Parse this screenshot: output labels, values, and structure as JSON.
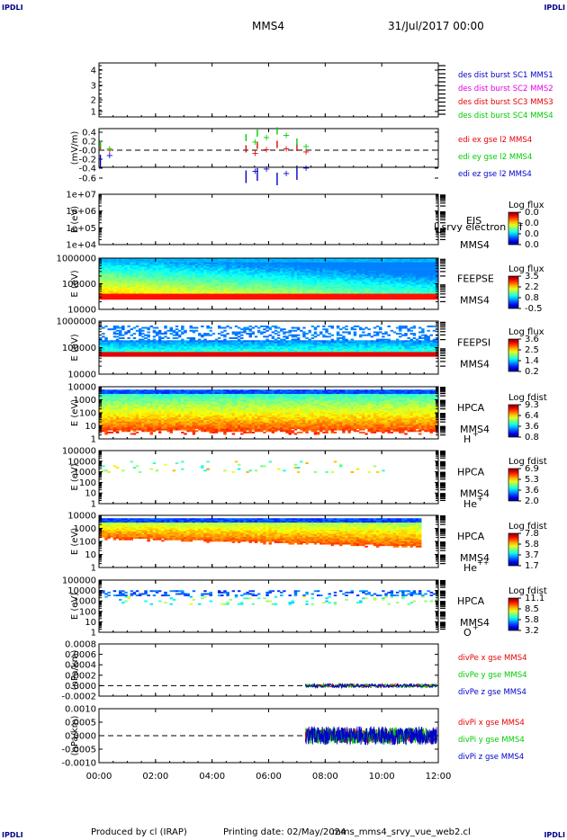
{
  "header": {
    "corner_left_top": "IPDLI",
    "corner_right_top": "IPDLI",
    "corner_left_bottom": "IPDLI",
    "corner_right_bottom": "IPDLI",
    "title": "MMS4",
    "date": "31/Jul/2017 00:00"
  },
  "footer": {
    "produced_by": "Produced by cl (IRAP)",
    "printing_date": "Printing date: 02/May/2024",
    "script_name": "mms_mms4_srvy_vue_web2.cl"
  },
  "colors": {
    "mms1": "#0000cc",
    "mms2": "#e600e6",
    "mms3": "#e60000",
    "mms4": "#00cc00",
    "x": "#e60000",
    "y": "#00cc00",
    "z": "#0000cc"
  },
  "chart_data": [
    {
      "type": "line",
      "panel": "sc-positions",
      "yticks": [
        "4",
        "3",
        "2",
        "1"
      ],
      "ylim": [
        0.5,
        4.5
      ],
      "legend": [
        {
          "text": "des dist burst SC1 MMS1",
          "color": "#0000cc"
        },
        {
          "text": "des dist burst SC2 MMS2",
          "color": "#e600e6"
        },
        {
          "text": "des dist burst SC3 MMS3",
          "color": "#e60000"
        },
        {
          "text": "des dist burst SC4 MMS4",
          "color": "#00cc00"
        }
      ]
    },
    {
      "type": "line",
      "panel": "electric-field",
      "ylabel": "(mV/m)",
      "yticks": [
        "0.4",
        "0.2",
        "-0.0",
        "-0.2",
        "-0.4",
        "-0.6"
      ],
      "ylim": [
        -0.6,
        0.45
      ],
      "legend": [
        {
          "text": "edi ex gse l2 MMS4",
          "color": "#e60000"
        },
        {
          "text": "edi ey gse l2 MMS4",
          "color": "#00cc00"
        },
        {
          "text": "edi ez gse l2 MMS4",
          "color": "#0000cc"
        }
      ],
      "series": [
        {
          "name": "edi ex gse l2 MMS4",
          "points": [
            [
              0.05,
              0.02
            ],
            [
              5.2,
              -0.05
            ],
            [
              5.6,
              0.03
            ],
            [
              6.3,
              0.05
            ],
            [
              7.0,
              -0.02
            ]
          ]
        },
        {
          "name": "edi ey gse l2 MMS4",
          "points": [
            [
              0.05,
              0.05
            ],
            [
              5.2,
              0.2
            ],
            [
              5.6,
              0.3
            ],
            [
              6.3,
              0.35
            ],
            [
              7.0,
              0.1
            ]
          ]
        },
        {
          "name": "edi ez gse l2 MMS4",
          "points": [
            [
              0.05,
              -0.1
            ],
            [
              5.2,
              -0.45
            ],
            [
              5.6,
              -0.4
            ],
            [
              6.3,
              -0.5
            ],
            [
              7.0,
              -0.38
            ]
          ]
        }
      ]
    },
    {
      "type": "heatmap",
      "panel": "eis",
      "ylabel": "E (eV)",
      "yticks": [
        "1e+07",
        "1e+06",
        "1e+05",
        "1e+04"
      ],
      "right_labels": [
        "EIS",
        "MMS4"
      ],
      "overlay_text": "l_srvy electron tof",
      "colorbar_title": "Log flux",
      "colorbar_ticks": [
        "0.0",
        "0.0",
        "0.0",
        "0.0"
      ]
    },
    {
      "type": "heatmap",
      "panel": "feeps-electron",
      "ylabel": "E (eV)",
      "yticks": [
        "1000000",
        "100000",
        "10000"
      ],
      "right_labels": [
        "FEEPSE",
        "MMS4"
      ],
      "colorbar_title": "Log flux",
      "colorbar_ticks": [
        "3.5",
        "2.2",
        "0.8",
        "-0.5"
      ]
    },
    {
      "type": "heatmap",
      "panel": "feeps-ion",
      "ylabel": "E (eV)",
      "yticks": [
        "1000000",
        "100000",
        "10000"
      ],
      "right_labels": [
        "FEEPSI",
        "MMS4"
      ],
      "colorbar_title": "Log flux",
      "colorbar_ticks": [
        "3.6",
        "2.5",
        "1.4",
        "0.2"
      ]
    },
    {
      "type": "heatmap",
      "panel": "hpca-h",
      "ylabel": "E (eV)",
      "yticks": [
        "10000",
        "1000",
        "100",
        "10",
        "1"
      ],
      "right_labels": [
        "HPCA",
        "MMS4",
        "H",
        "+"
      ],
      "colorbar_title": "Log fdist",
      "colorbar_ticks": [
        "9.3",
        "6.4",
        "3.6",
        "0.8"
      ]
    },
    {
      "type": "heatmap",
      "panel": "hpca-he1",
      "ylabel": "E (eV)",
      "yticks": [
        "100000",
        "10000",
        "1000",
        "100",
        "10",
        "1"
      ],
      "right_labels": [
        "HPCA",
        "MMS4",
        "He",
        "+"
      ],
      "colorbar_title": "Log fdist",
      "colorbar_ticks": [
        "6.9",
        "5.3",
        "3.6",
        "2.0"
      ]
    },
    {
      "type": "heatmap",
      "panel": "hpca-he2",
      "ylabel": "E (eV)",
      "yticks": [
        "10000",
        "1000",
        "100",
        "10",
        "1"
      ],
      "right_labels": [
        "HPCA",
        "MMS4",
        "He",
        "++"
      ],
      "colorbar_title": "Log fdist",
      "colorbar_ticks": [
        "7.8",
        "5.8",
        "3.7",
        "1.7"
      ]
    },
    {
      "type": "heatmap",
      "panel": "hpca-o",
      "ylabel": "E (eV)",
      "yticks": [
        "100000",
        "10000",
        "1000",
        "100",
        "10",
        "1"
      ],
      "right_labels": [
        "HPCA",
        "MMS4",
        "O",
        "+"
      ],
      "colorbar_title": "Log fdist",
      "colorbar_ticks": [
        "11.1",
        "8.5",
        "5.8",
        "3.2"
      ]
    },
    {
      "type": "line",
      "panel": "divpe",
      "ylabel": "(nPa/km)",
      "yticks": [
        "0.0008",
        "0.0006",
        "0.0004",
        "0.0002",
        "0.0000",
        "-0.0002"
      ],
      "ylim": [
        -0.0003,
        0.0009
      ],
      "legend": [
        {
          "text": "divPe x gse MMS4",
          "color": "#e60000"
        },
        {
          "text": "divPe y gse MMS4",
          "color": "#00cc00"
        },
        {
          "text": "divPe z gse MMS4",
          "color": "#0000cc"
        }
      ]
    },
    {
      "type": "line",
      "panel": "divpi",
      "ylabel": "(nPa/km)",
      "yticks": [
        "0.0010",
        "0.0005",
        "0.0000",
        "-0.0005",
        "-0.0010"
      ],
      "ylim": [
        -0.0013,
        0.0013
      ],
      "legend": [
        {
          "text": "divPi x gse MMS4",
          "color": "#e60000"
        },
        {
          "text": "divPi y gse MMS4",
          "color": "#00cc00"
        },
        {
          "text": "divPi z gse MMS4",
          "color": "#0000cc"
        }
      ]
    }
  ],
  "xaxis": {
    "ticks": [
      "00:00",
      "02:00",
      "04:00",
      "06:00",
      "08:00",
      "10:00",
      "12:00"
    ],
    "xlim_hours": [
      0,
      12
    ]
  }
}
